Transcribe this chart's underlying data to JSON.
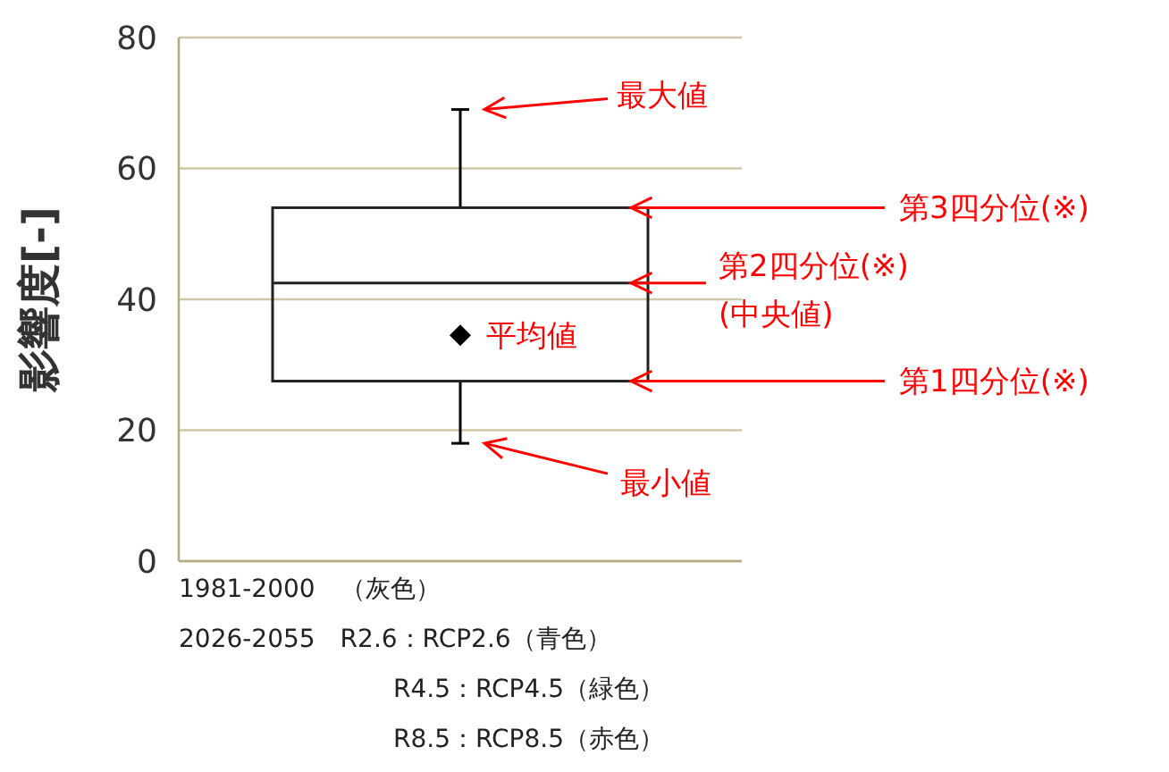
{
  "chart_data": {
    "type": "box",
    "ylabel": "影響度[-]",
    "categories": [
      null
    ],
    "boxes": [
      {
        "low": 18,
        "q1": 27.5,
        "median": 42.5,
        "q3": 54,
        "high": 69,
        "mean": 34.5
      }
    ],
    "ylim": [
      0,
      80
    ],
    "yticks": [
      0,
      20,
      40,
      60,
      80
    ],
    "grid": "y",
    "annotations": [
      "最大値",
      "第3四分位(※)",
      "第2四分位(※)\n(中央値)",
      "第1四分位(※)",
      "最小値",
      "平均値",
      "1981-2000　（灰色）",
      "2026-2055　R2.6：RCP2.6（青色）",
      "R4.5：RCP4.5（緑色）",
      "R8.5：RCP8.5（赤色）"
    ]
  }
}
